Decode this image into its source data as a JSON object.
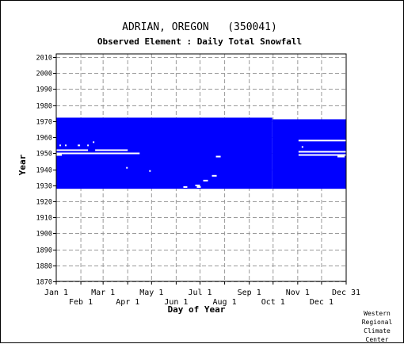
{
  "chart_data": {
    "type": "heatmap",
    "title": "ADRIAN, OREGON   (350041)",
    "subtitle": "Observed Element : Daily Total Snowfall",
    "xlabel": "Day of Year",
    "ylabel": "Year",
    "ylim": [
      1870,
      2012
    ],
    "xlim": [
      1,
      365
    ],
    "y_ticks": [
      1870,
      1880,
      1890,
      1900,
      1910,
      1920,
      1930,
      1940,
      1950,
      1960,
      1970,
      1980,
      1990,
      2000,
      2010
    ],
    "x_ticks_upper": [
      {
        "label": "Jan 1",
        "day": 1
      },
      {
        "label": "Mar 1",
        "day": 60
      },
      {
        "label": "May 1",
        "day": 121
      },
      {
        "label": "Jul 1",
        "day": 182
      },
      {
        "label": "Sep 1",
        "day": 244
      },
      {
        "label": "Nov 1",
        "day": 305
      },
      {
        "label": "Dec 31",
        "day": 365
      }
    ],
    "x_ticks_lower": [
      {
        "label": "Feb 1",
        "day": 32
      },
      {
        "label": "Apr 1",
        "day": 91
      },
      {
        "label": "Jun 1",
        "day": 152
      },
      {
        "label": "Aug 1",
        "day": 213
      },
      {
        "label": "Oct 1",
        "day": 274
      },
      {
        "label": "Dec 1",
        "day": 335
      }
    ],
    "grid": true,
    "data_color": "#0000ff",
    "data_block": {
      "year_start": 1928,
      "year_end": 1972,
      "year_end_late": 1971,
      "late_day": 273
    },
    "gaps": [
      {
        "year": 1952,
        "day_start": 1,
        "day_end": 40
      },
      {
        "year": 1952,
        "day_start": 50,
        "day_end": 90
      },
      {
        "year": 1950,
        "day_start": 1,
        "day_end": 105
      },
      {
        "year": 1949,
        "day_start": 1,
        "day_end": 7
      },
      {
        "year": 1955,
        "day_start": 5,
        "day_end": 6
      },
      {
        "year": 1955,
        "day_start": 12,
        "day_end": 13
      },
      {
        "year": 1955,
        "day_start": 28,
        "day_end": 30
      },
      {
        "year": 1955,
        "day_start": 40,
        "day_end": 41
      },
      {
        "year": 1957,
        "day_start": 47,
        "day_end": 48
      },
      {
        "year": 1941,
        "day_start": 89,
        "day_end": 90
      },
      {
        "year": 1939,
        "day_start": 118,
        "day_end": 119
      },
      {
        "year": 1929,
        "day_start": 161,
        "day_end": 165
      },
      {
        "year": 1930,
        "day_start": 176,
        "day_end": 181
      },
      {
        "year": 1929,
        "day_start": 178,
        "day_end": 182
      },
      {
        "year": 1933,
        "day_start": 186,
        "day_end": 191
      },
      {
        "year": 1936,
        "day_start": 197,
        "day_end": 202
      },
      {
        "year": 1948,
        "day_start": 202,
        "day_end": 207
      },
      {
        "year": 1958,
        "day_start": 306,
        "day_end": 365
      },
      {
        "year": 1954,
        "day_start": 310,
        "day_end": 311
      },
      {
        "year": 1951,
        "day_start": 306,
        "day_end": 365
      },
      {
        "year": 1949,
        "day_start": 306,
        "day_end": 365
      },
      {
        "year": 1948,
        "day_start": 355,
        "day_end": 363
      }
    ]
  },
  "credit": [
    "Western",
    "Regional",
    "Climate",
    "Center"
  ]
}
